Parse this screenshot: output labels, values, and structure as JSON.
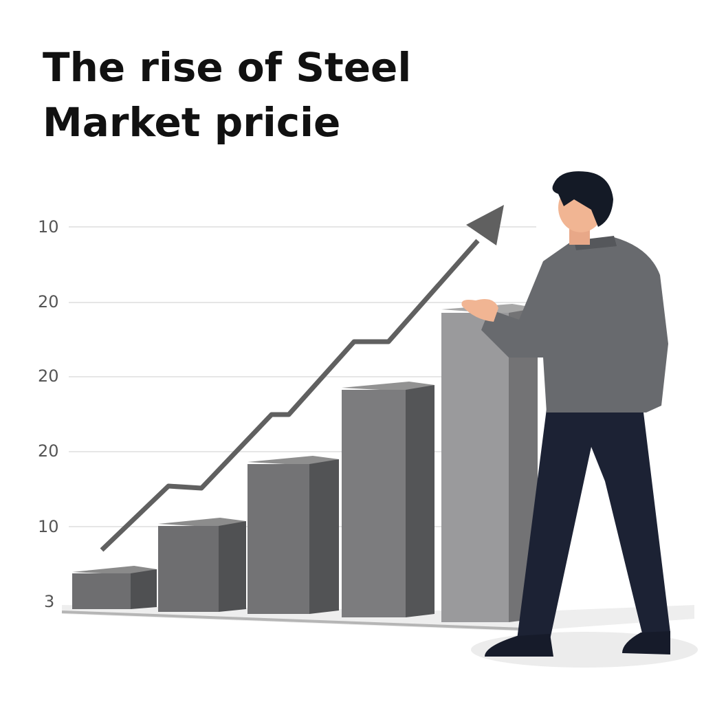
{
  "title_lines": [
    "The rise of Steel",
    "Market pricie"
  ],
  "axis_labels": [
    "10",
    "20",
    "20",
    "20",
    "10",
    "3"
  ]
}
